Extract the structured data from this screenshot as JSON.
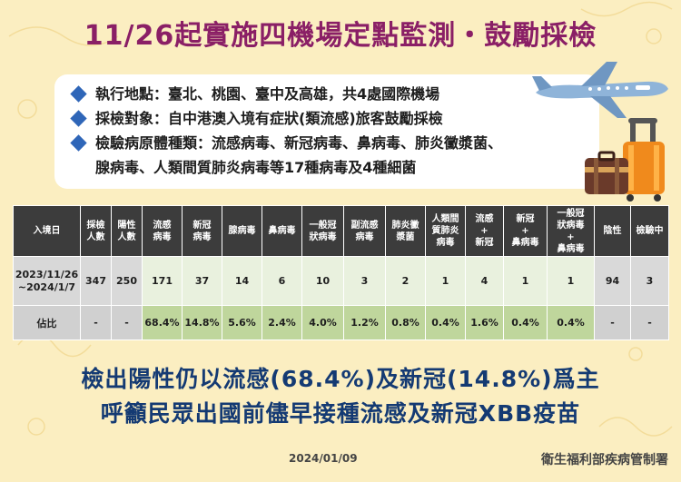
{
  "title": "11/26起實施四機場定點監測・鼓勵採檢",
  "info": {
    "line1": "執行地點：臺北、桃園、臺中及高雄，共4處國際機場",
    "line2": "採檢對象：自中港澳入境有症狀(類流感)旅客鼓勵採檢",
    "line3a": "檢驗病原體種類：流感病毒、新冠病毒、鼻病毒、肺炎黴漿菌、",
    "line3b": "腺病毒、人類間質肺炎病毒等17種病毒及4種細菌"
  },
  "table": {
    "headers": [
      "入境日",
      "採檢\n人數",
      "陽性\n人數",
      "流感\n病毒",
      "新冠\n病毒",
      "腺病毒",
      "鼻病毒",
      "一般冠\n狀病毒",
      "副流感\n病毒",
      "肺炎黴\n漿菌",
      "人類間\n質肺炎\n病毒",
      "流感\n+\n新冠",
      "新冠\n+\n鼻病毒",
      "一般冠\n狀病毒\n+\n鼻病毒",
      "陰性",
      "檢驗中"
    ],
    "row1": {
      "label": "2023/11/26\n~2024/1/7",
      "values": [
        "347",
        "250",
        "171",
        "37",
        "14",
        "6",
        "10",
        "3",
        "2",
        "1",
        "4",
        "1",
        "1",
        "94",
        "3"
      ]
    },
    "row2": {
      "label": "佔比",
      "values": [
        "-",
        "-",
        "68.4%",
        "14.8%",
        "5.6%",
        "2.4%",
        "4.0%",
        "1.2%",
        "0.8%",
        "0.4%",
        "1.6%",
        "0.4%",
        "0.4%",
        "-",
        "-"
      ]
    }
  },
  "headline1": "檢出陽性仍以流感(68.4%)及新冠(14.8%)爲主",
  "headline2": "呼籲民眾出國前儘早接種流感及新冠XBB疫苗",
  "date": "2024/01/09",
  "agency": "衛生福利部疾病管制署",
  "icons": [
    "airplane-icon",
    "luggage-icon",
    "diamond-bullet-icon"
  ]
}
